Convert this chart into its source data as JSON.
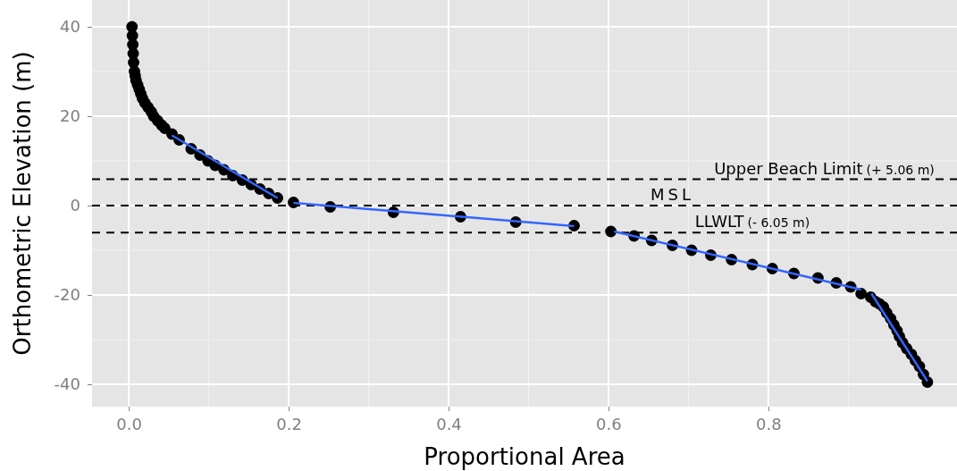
{
  "chart_data": {
    "type": "scatter",
    "xlabel": "Proportional Area",
    "ylabel": "Orthometric Elevation (m)",
    "xlim": [
      -0.046,
      1.036
    ],
    "ylim": [
      -45,
      46
    ],
    "xticks": [
      {
        "value": 0,
        "label": "0.0"
      },
      0.2,
      0.4,
      0.6,
      0.8
    ],
    "yticks": [
      -40,
      -20,
      0,
      20,
      40
    ],
    "grid": true,
    "series": [
      {
        "marker": "circle",
        "color": "#000000",
        "x": [
          0.004,
          0.0045,
          0.005,
          0.0055,
          0.006,
          0.007,
          0.008,
          0.009,
          0.011,
          0.013,
          0.015,
          0.017,
          0.02,
          0.024,
          0.028,
          0.031,
          0.036,
          0.041,
          0.045,
          0.054,
          0.063,
          0.078,
          0.089,
          0.099,
          0.108,
          0.119,
          0.13,
          0.142,
          0.153,
          0.164,
          0.175,
          0.186,
          0.206,
          0.252,
          0.331,
          0.415,
          0.484,
          0.557,
          0.603,
          0.632,
          0.654,
          0.68,
          0.704,
          0.728,
          0.754,
          0.78,
          0.805,
          0.832,
          0.862,
          0.885,
          0.903,
          0.916,
          0.928,
          0.934,
          0.939,
          0.944,
          0.948,
          0.953,
          0.957,
          0.961,
          0.964,
          0.968,
          0.973,
          0.979,
          0.984,
          0.989,
          0.994,
          0.999
        ],
        "values": [
          40,
          38,
          36,
          34,
          32,
          30,
          29,
          28,
          27,
          26,
          25,
          24,
          23,
          22,
          21,
          20,
          19,
          18,
          17.3,
          16,
          14.7,
          12.7,
          11.3,
          10,
          9,
          8,
          6.7,
          5.7,
          4.7,
          3.7,
          2.7,
          1.7,
          0.7,
          -0.3,
          -1.5,
          -2.5,
          -3.7,
          -4.5,
          -5.8,
          -6.8,
          -7.8,
          -8.9,
          -10,
          -11.1,
          -12.1,
          -13.2,
          -14.1,
          -15.2,
          -16.2,
          -17.3,
          -18.2,
          -19.7,
          -20.5,
          -21.5,
          -22,
          -22.7,
          -24,
          -25.3,
          -26.7,
          -28,
          -29.3,
          -30.7,
          -32,
          -33.3,
          -34.7,
          -36,
          -37.8,
          -39.5
        ]
      },
      {
        "type": "line",
        "color": "#3366ff",
        "x": [
          0.054,
          0.186
        ],
        "values": [
          15.7,
          1.7
        ]
      },
      {
        "type": "line",
        "color": "#3366ff",
        "x": [
          0.206,
          0.557
        ],
        "values": [
          0.6,
          -4.6
        ]
      },
      {
        "type": "line",
        "color": "#3366ff",
        "x": [
          0.607,
          0.916
        ],
        "values": [
          -5.8,
          -18.8
        ]
      },
      {
        "type": "line",
        "color": "#3366ff",
        "x": [
          0.929,
          0.999
        ],
        "values": [
          -19.7,
          -39.3
        ]
      }
    ],
    "ref_lines": [
      {
        "axis": "y",
        "value": 5.9,
        "label": "Upper Beach Limit (+ 5.06 m)",
        "color": "#000000",
        "line_style": "dashed"
      },
      {
        "axis": "y",
        "value": 0,
        "label": "MSL",
        "color": "#000000",
        "line_style": "dashed"
      },
      {
        "axis": "y",
        "value": -6.05,
        "label": "LLWLT (- 6.05 m)",
        "color": "#000000",
        "line_style": "dashed"
      }
    ]
  }
}
